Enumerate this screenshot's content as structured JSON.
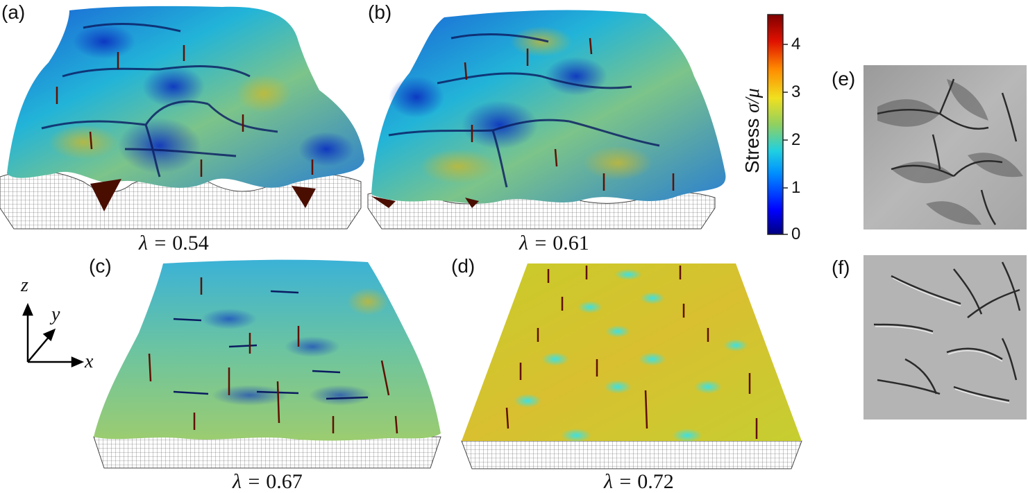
{
  "panels": {
    "a": {
      "label": "(a)",
      "lambda": "0.54"
    },
    "b": {
      "label": "(b)",
      "lambda": "0.61"
    },
    "c": {
      "label": "(c)",
      "lambda": "0.67"
    },
    "d": {
      "label": "(d)",
      "lambda": "0.72"
    },
    "e": {
      "label": "(e)"
    },
    "f": {
      "label": "(f)"
    }
  },
  "caption_prefix": "λ = ",
  "colorbar": {
    "label_text": "Stress ",
    "label_symbol": "σ/μ",
    "ticks": [
      "4",
      "3",
      "2",
      "1",
      "0"
    ],
    "range": [
      0,
      4.6
    ],
    "colors": [
      "#00007f",
      "#0000ff",
      "#00b4ff",
      "#40e0d0",
      "#a0d050",
      "#f0e020",
      "#ff8c00",
      "#e01000",
      "#7f0000"
    ]
  },
  "axes": {
    "z": "z",
    "y": "y",
    "x": "x"
  }
}
